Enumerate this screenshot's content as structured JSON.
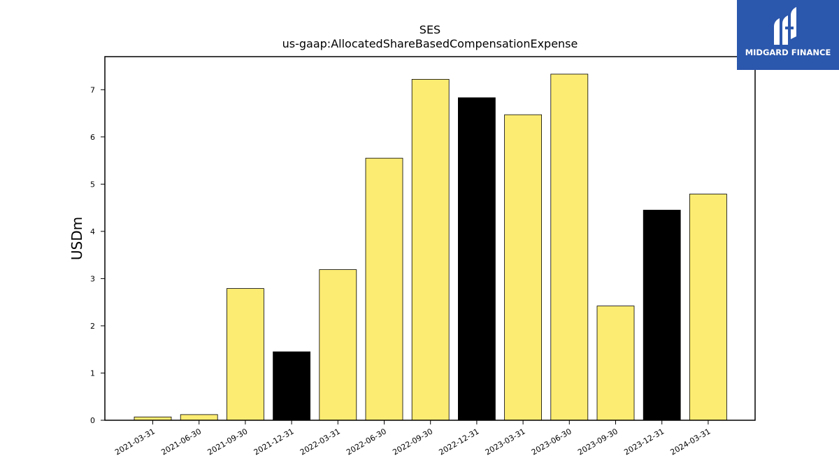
{
  "logo": {
    "text": "MIDGARD FINANCE",
    "background": "#2b57ac"
  },
  "chart_data": {
    "type": "bar",
    "title": "SES",
    "subtitle": "us-gaap:AllocatedShareBasedCompensationExpense",
    "xlabel": "",
    "ylabel": "USDm",
    "ylim": [
      0,
      7.7
    ],
    "yticks": [
      0,
      1,
      2,
      3,
      4,
      5,
      6,
      7
    ],
    "grid": false,
    "categories": [
      "2021-03-31",
      "2021-06-30",
      "2021-09-30",
      "2021-12-31",
      "2022-03-31",
      "2022-06-30",
      "2022-09-30",
      "2022-12-31",
      "2023-03-31",
      "2023-06-30",
      "2023-09-30",
      "2023-12-31",
      "2024-03-31"
    ],
    "values": [
      0.07,
      0.12,
      2.79,
      1.45,
      3.19,
      5.55,
      7.22,
      6.83,
      6.47,
      7.33,
      2.42,
      4.45,
      4.79
    ],
    "colors": [
      "#fdec72",
      "#fdec72",
      "#fdec72",
      "#000000",
      "#fdec72",
      "#fdec72",
      "#fdec72",
      "#000000",
      "#fdec72",
      "#fdec72",
      "#fdec72",
      "#000000",
      "#fdec72"
    ]
  }
}
